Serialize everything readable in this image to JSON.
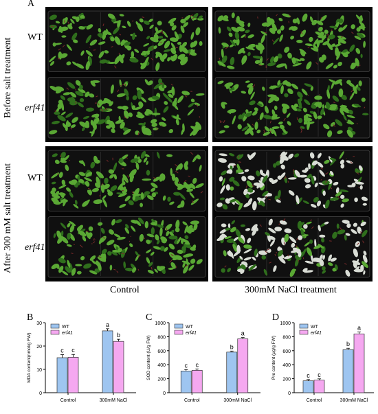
{
  "figure": {
    "panel_a": {
      "letter": "A",
      "row_labels": [
        "WT",
        "erf41",
        "WT",
        "erf41"
      ],
      "side_labels": [
        "Before salt treatment",
        "After 300 mM salt treatment"
      ],
      "column_labels": [
        "Control",
        "300mM NaCl treatment"
      ],
      "leaf_colors": {
        "healthy": "#5aa834",
        "dark": "#2f6e1c",
        "bleached": "#d9ddd5",
        "red_stem": "#7a2a2a"
      }
    },
    "legend": {
      "wt": "WT",
      "erf41": "erf41"
    },
    "colors": {
      "wt": "#9ec5f0",
      "erf41": "#f5a8f0"
    }
  },
  "chart_data": [
    {
      "panel": "B",
      "type": "bar",
      "categories": [
        "Control",
        "300mM NaCl"
      ],
      "series": [
        {
          "name": "WT",
          "values": [
            15.0,
            26.5
          ],
          "errors": [
            1.3,
            0.9
          ],
          "letters": [
            "c",
            "a"
          ]
        },
        {
          "name": "erf41",
          "values": [
            15.2,
            22.0
          ],
          "errors": [
            1.2,
            0.9
          ],
          "letters": [
            "c",
            "b"
          ]
        }
      ],
      "ylabel": "MDA content(nmol/g FW)",
      "ylim": [
        0,
        30
      ],
      "yticks": [
        "0",
        "10",
        "20",
        "30"
      ]
    },
    {
      "panel": "C",
      "type": "bar",
      "categories": [
        "Control",
        "300mM NaCl"
      ],
      "series": [
        {
          "name": "WT",
          "values": [
            310,
            580
          ],
          "errors": [
            20,
            15
          ],
          "letters": [
            "c",
            "b"
          ]
        },
        {
          "name": "erf41",
          "values": [
            320,
            770
          ],
          "errors": [
            20,
            18
          ],
          "letters": [
            "c",
            "a"
          ]
        }
      ],
      "ylabel": "SOD content (U/g FW)",
      "ylim": [
        0,
        1000
      ],
      "yticks": [
        "0",
        "200",
        "400",
        "600",
        "800",
        "1000"
      ]
    },
    {
      "panel": "D",
      "type": "bar",
      "categories": [
        "Control",
        "300mM NaCl"
      ],
      "series": [
        {
          "name": "WT",
          "values": [
            170,
            615
          ],
          "errors": [
            18,
            20
          ],
          "letters": [
            "c",
            "b"
          ]
        },
        {
          "name": "erf41",
          "values": [
            180,
            840
          ],
          "errors": [
            18,
            28
          ],
          "letters": [
            "c",
            "a"
          ]
        }
      ],
      "ylabel": "Pro content (μg/g FW)",
      "ylim": [
        0,
        1000
      ],
      "yticks": [
        "0",
        "200",
        "400",
        "600",
        "800",
        "1000"
      ]
    }
  ]
}
